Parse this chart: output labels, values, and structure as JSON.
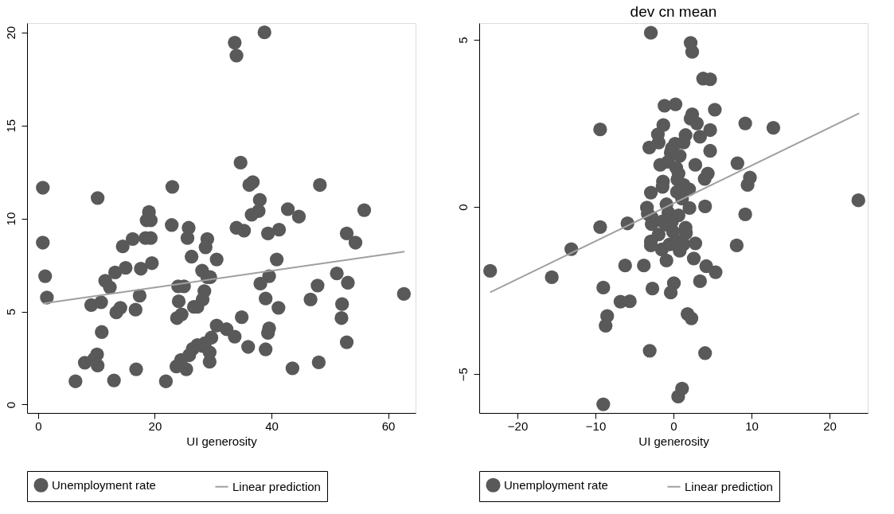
{
  "chart_data": [
    {
      "type": "scatter",
      "xlabel": "UI generosity",
      "xlim": [
        -1.9,
        64.7
      ],
      "ylim": [
        -0.45,
        20.5
      ],
      "xticks": [
        0,
        20,
        40,
        60
      ],
      "yticks": [
        0,
        5,
        10,
        15,
        20
      ],
      "grid": false,
      "legend": "bottom",
      "series": [
        {
          "name": "Unemployment rate",
          "marker": "circle",
          "color": "#595959",
          "x": [
            0.8,
            0.8,
            1.2,
            1.5,
            10.2,
            9.1,
            10.8,
            10.9,
            8.0,
            9.6,
            10.1,
            10.2,
            6.4,
            13.0,
            11.5,
            12.3,
            13.2,
            14.5,
            15.0,
            13.4,
            14.1,
            16.2,
            16.7,
            16.8,
            17.6,
            17.4,
            19.0,
            18.6,
            19.3,
            18.4,
            19.3,
            19.5,
            21.9,
            23.0,
            22.9,
            25.8,
            25.6,
            26.3,
            24.0,
            25.0,
            24.1,
            23.8,
            24.6,
            23.7,
            24.5,
            25.4,
            25.9,
            26.5,
            27.3,
            27.3,
            28.2,
            28.1,
            29.0,
            29.5,
            28.5,
            28.2,
            26.7,
            29.0,
            28.7,
            30.6,
            29.4,
            29.4,
            28.6,
            29.7,
            30.6,
            32.3,
            33.7,
            33.7,
            34.0,
            38.8,
            34.7,
            36.8,
            36.2,
            48.3,
            38.0,
            36.6,
            37.8,
            42.8,
            44.7,
            55.9,
            34.0,
            35.3,
            39.4,
            41.3,
            52.9,
            54.4,
            40.9,
            39.6,
            38.1,
            51.2,
            53.1,
            47.9,
            46.7,
            39.0,
            41.2,
            52.1,
            52.0,
            62.7,
            34.9,
            39.6,
            39.4,
            36.0,
            39.0,
            52.9,
            43.6,
            48.1
          ],
          "values": [
            11.65,
            8.7,
            6.9,
            5.75,
            11.1,
            5.35,
            5.5,
            3.9,
            2.25,
            2.45,
            2.7,
            2.1,
            1.25,
            1.3,
            6.65,
            6.3,
            7.1,
            8.5,
            7.35,
            4.95,
            5.2,
            8.9,
            5.1,
            1.9,
            7.3,
            5.85,
            10.35,
            9.9,
            9.9,
            8.95,
            8.95,
            7.6,
            1.25,
            11.7,
            9.65,
            9.5,
            8.95,
            7.95,
            6.35,
            6.35,
            5.55,
            4.65,
            4.85,
            2.05,
            2.4,
            1.9,
            2.65,
            3.0,
            5.25,
            3.2,
            3.15,
            7.2,
            6.85,
            6.85,
            6.1,
            5.65,
            5.25,
            8.9,
            8.45,
            7.8,
            2.8,
            2.3,
            3.3,
            3.6,
            4.25,
            4.05,
            3.65,
            19.45,
            18.75,
            20.0,
            13.0,
            11.95,
            11.8,
            11.8,
            11.0,
            10.2,
            10.4,
            10.5,
            10.1,
            10.45,
            9.5,
            9.35,
            9.2,
            9.4,
            9.2,
            8.7,
            7.8,
            6.9,
            6.5,
            7.05,
            6.55,
            6.4,
            5.65,
            5.7,
            5.2,
            5.4,
            4.65,
            5.95,
            4.7,
            4.1,
            3.85,
            3.1,
            2.97,
            3.35,
            1.95,
            2.27
          ]
        },
        {
          "name": "Linear prediction",
          "type": "line",
          "color": "#a0a0a0",
          "x": [
            0.8,
            62.8
          ],
          "values": [
            5.43,
            8.22
          ]
        }
      ]
    },
    {
      "type": "scatter",
      "title": "dev cn mean",
      "xlabel": "UI generosity",
      "xlim": [
        -24.9,
        24.9
      ],
      "ylim": [
        -6.16,
        5.5
      ],
      "xticks": [
        -20,
        -10,
        0,
        10,
        20
      ],
      "yticks": [
        -5,
        0,
        5
      ],
      "grid": false,
      "legend": "bottom",
      "series": [
        {
          "name": "Unemployment rate",
          "marker": "circle",
          "color": "#595959",
          "x": [
            -2.9,
            -9.4,
            -3.1,
            -23.5,
            -15.6,
            -13.1,
            -9.4,
            -5.9,
            -6.2,
            -3.8,
            -9.0,
            -6.8,
            -5.6,
            -8.5,
            -8.7,
            -3.05,
            -9.0,
            -3.4,
            -3.3,
            -2.9,
            -2.8,
            -2.9,
            -2.9,
            -2.7,
            2.2,
            2.4,
            3.8,
            4.7,
            -1.15,
            0.26,
            5.3,
            2.4,
            2.2,
            3.0,
            -1.3,
            9.2,
            12.8,
            4.7,
            -2.0,
            -1.9,
            1.55,
            1.3,
            3.4,
            0.2,
            -0.2,
            -0.35,
            0.8,
            4.7,
            -1.7,
            -0.7,
            2.8,
            8.2,
            0.35,
            0.65,
            4.4,
            4.0,
            9.8,
            9.5,
            -1.35,
            -1.4,
            0.5,
            1.3,
            2.0,
            0.45,
            1.1,
            -0.9,
            -0.65,
            2.05,
            4.05,
            23.7,
            9.2,
            0.65,
            -2.8,
            -1.4,
            -0.2,
            -0.9,
            1.55,
            -1.9,
            -0.06,
            1.6,
            -1.5,
            -0.5,
            0.5,
            1.3,
            0.8,
            2.8,
            8.1,
            -0.9,
            2.6,
            4.2,
            5.4,
            3.4,
            0.05,
            -0.35,
            1.8,
            2.3,
            4.05,
            1.1,
            0.6
          ],
          "values": [
            5.21,
            2.32,
            1.78,
            -1.91,
            -2.1,
            -1.26,
            -0.6,
            -0.49,
            -1.75,
            -1.75,
            -2.41,
            -2.83,
            -2.82,
            -3.26,
            -3.55,
            -4.3,
            -5.9,
            -0.02,
            -0.2,
            0.43,
            -0.31,
            -1.03,
            -1.15,
            -2.44,
            4.91,
            4.64,
            3.84,
            3.82,
            3.03,
            3.07,
            2.91,
            2.77,
            2.64,
            2.5,
            2.45,
            2.5,
            2.37,
            2.3,
            2.17,
            1.93,
            2.15,
            1.93,
            2.1,
            1.89,
            1.76,
            1.63,
            1.53,
            1.68,
            1.26,
            1.35,
            1.26,
            1.31,
            1.17,
            1.0,
            1.0,
            0.84,
            0.88,
            0.66,
            0.76,
            0.6,
            0.82,
            0.66,
            0.53,
            0.45,
            0.25,
            0.08,
            -0.17,
            -0.03,
            0.02,
            0.2,
            -0.22,
            -0.25,
            -0.51,
            -0.43,
            -0.44,
            -0.53,
            -0.62,
            -0.82,
            -0.74,
            -0.78,
            -1.27,
            -1.12,
            -1.03,
            -1.11,
            -1.31,
            -1.09,
            -1.15,
            -1.6,
            -1.54,
            -1.77,
            -1.95,
            -2.22,
            -2.28,
            -2.56,
            -3.2,
            -3.33,
            -4.37,
            -5.43,
            -5.67
          ]
        },
        {
          "name": "Linear prediction",
          "type": "line",
          "color": "#a0a0a0",
          "x": [
            -23.5,
            23.8
          ],
          "values": [
            -2.55,
            2.8
          ]
        }
      ]
    }
  ]
}
